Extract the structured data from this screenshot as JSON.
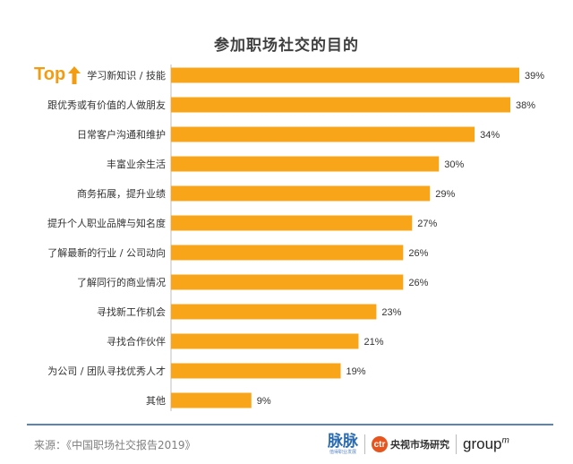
{
  "chart_data": {
    "type": "bar",
    "orientation": "horizontal",
    "title": "参加职场社交的目的",
    "categories": [
      "学习新知识 / 技能",
      "跟优秀或有价值的人做朋友",
      "日常客户沟通和维护",
      "丰富业余生活",
      "商务拓展，提升业绩",
      "提升个人职业品牌与知名度",
      "了解最新的行业 / 公司动向",
      "了解同行的商业情况",
      "寻找新工作机会",
      "寻找合作伙伴",
      "为公司 / 团队寻找优秀人才",
      "其他"
    ],
    "values": [
      39,
      38,
      34,
      30,
      29,
      27,
      26,
      26,
      23,
      21,
      19,
      9
    ],
    "value_labels": [
      "39%",
      "38%",
      "34%",
      "30%",
      "29%",
      "27%",
      "26%",
      "26%",
      "23%",
      "21%",
      "19%",
      "9%"
    ],
    "bar_color": "#f9a51a",
    "xlim": [
      0,
      39
    ],
    "grid": false,
    "legend": "none"
  },
  "badge": {
    "text": "Top",
    "color": "#f39c12",
    "icon": "up-arrow-icon"
  },
  "footer": {
    "source": "来源：《中国职场社交报告2019》",
    "logo_maimai": "脉脉",
    "logo_maimai_sub": "值得职业发展",
    "logo_ctr_mark": "ctr",
    "logo_ctr_text": "央视市场研究",
    "logo_groupm": "group",
    "logo_groupm_sup": "m",
    "divider_color": "#5b84b1"
  }
}
